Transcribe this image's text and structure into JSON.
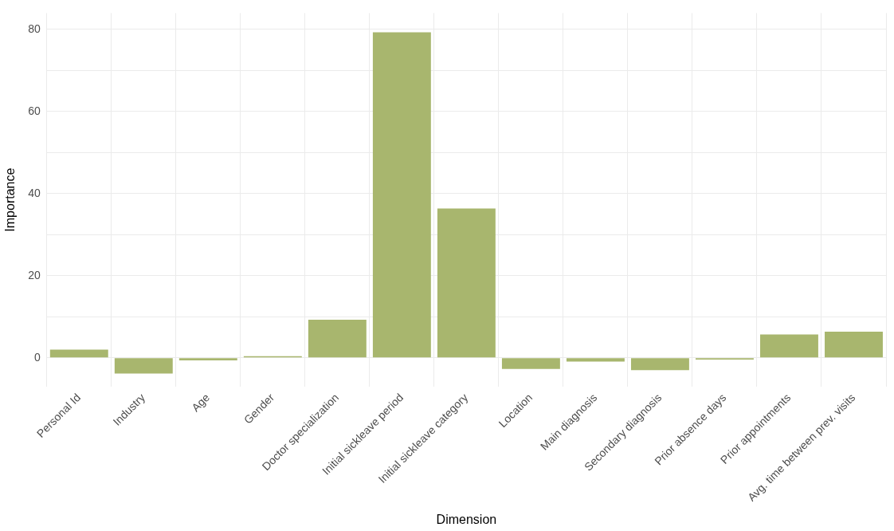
{
  "chart_data": {
    "type": "bar",
    "xlabel": "Dimension",
    "ylabel": "Importance",
    "categories": [
      "Personal Id",
      "Industry",
      "Age",
      "Gender",
      "Doctor specialization",
      "Initial sickleave period",
      "Initial sickleave category",
      "Location",
      "Main diagnosis",
      "Secondary diagnosis",
      "Prior absence days",
      "Prior appointments",
      "Avg. time between prev. visits"
    ],
    "values": [
      2.0,
      -3.8,
      -0.6,
      0.4,
      9.3,
      79.3,
      36.4,
      -2.7,
      -0.9,
      -3.0,
      -0.4,
      5.7,
      6.4
    ],
    "color": "#a8b66e",
    "ylim": [
      -7,
      84
    ],
    "yticks": [
      0,
      {
        "value": 10,
        "label": null
      },
      20,
      {
        "value": 30,
        "label": null
      },
      40,
      {
        "value": 50,
        "label": null
      },
      60,
      {
        "value": 70,
        "label": null
      },
      80
    ],
    "grid": true,
    "legend": false
  }
}
